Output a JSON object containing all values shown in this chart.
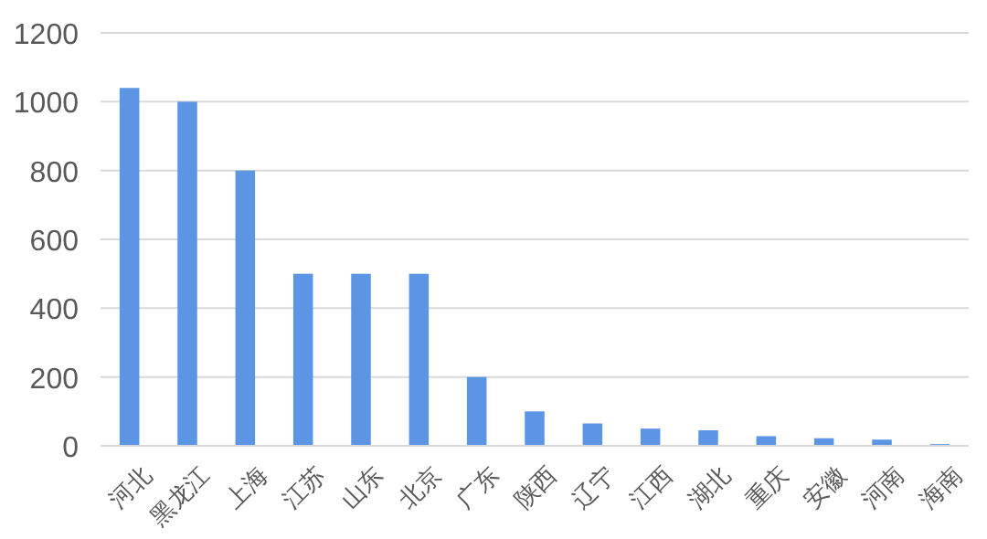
{
  "chart_data": {
    "type": "bar",
    "categories": [
      "河北",
      "黑龙江",
      "上海",
      "江苏",
      "山东",
      "北京",
      "广东",
      "陕西",
      "辽宁",
      "江西",
      "湖北",
      "重庆",
      "安徽",
      "河南",
      "海南"
    ],
    "values": [
      1040,
      1000,
      800,
      500,
      500,
      500,
      200,
      100,
      65,
      50,
      45,
      28,
      22,
      18,
      5
    ],
    "color": "#5b95e3",
    "ylim": [
      0,
      1200
    ],
    "yticks": [
      0,
      200,
      400,
      600,
      800,
      1000,
      1200
    ],
    "grid": "y"
  }
}
